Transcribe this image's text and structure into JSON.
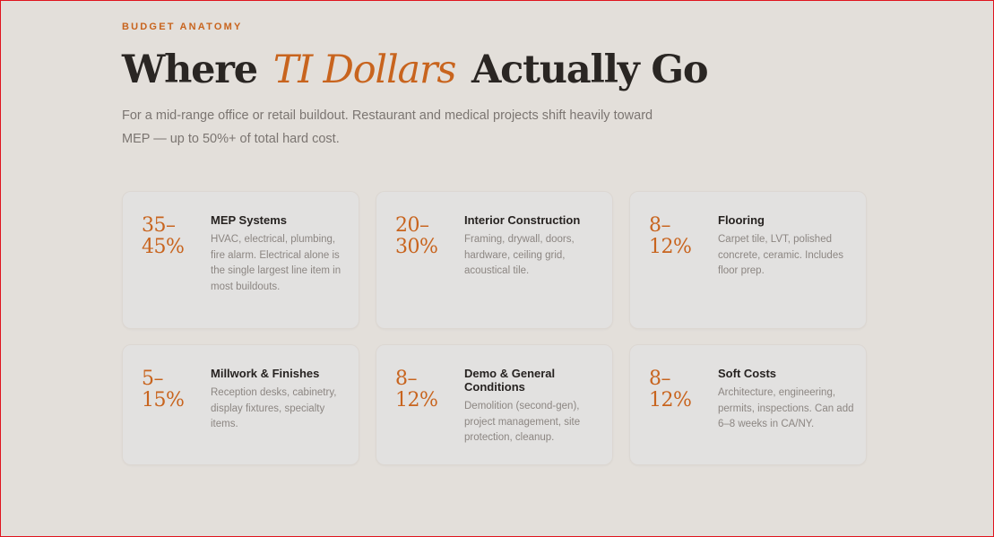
{
  "section": {
    "eyebrow": "BUDGET ANATOMY",
    "title_pre": "Where",
    "title_accent": "TI Dollars",
    "title_post": "Actually Go",
    "subtitle": "For a mid-range office or retail buildout. Restaurant and medical projects shift heavily toward MEP — up to 50%+ of total hard cost."
  },
  "cards": [
    {
      "range": "35–45%",
      "title": "MEP Systems",
      "description": "HVAC, electrical, plumbing, fire alarm. Electrical alone is the single largest line item in most buildouts."
    },
    {
      "range": "20–30%",
      "title": "Interior Construction",
      "description": "Framing, drywall, doors, hardware, ceiling grid, acoustical tile."
    },
    {
      "range": "8–12%",
      "title": "Flooring",
      "description": "Carpet tile, LVT, polished concrete, ceramic. Includes floor prep."
    },
    {
      "range": "5–15%",
      "title": "Millwork & Finishes",
      "description": "Reception desks, cabinetry, display fixtures, specialty items."
    },
    {
      "range": "8–12%",
      "title": "Demo & General Conditions",
      "description": "Demolition (second-gen), project management, site protection, cleanup."
    },
    {
      "range": "8–12%",
      "title": "Soft Costs",
      "description": "Architecture, engineering, permits, inspections. Can add 6–8 weeks in CA/NY."
    }
  ],
  "colors": {
    "accent": "#c8641e",
    "background": "#e3dfda",
    "card": "#e2e1e0",
    "heading": "#2a2623",
    "muted": "#7b7571"
  }
}
